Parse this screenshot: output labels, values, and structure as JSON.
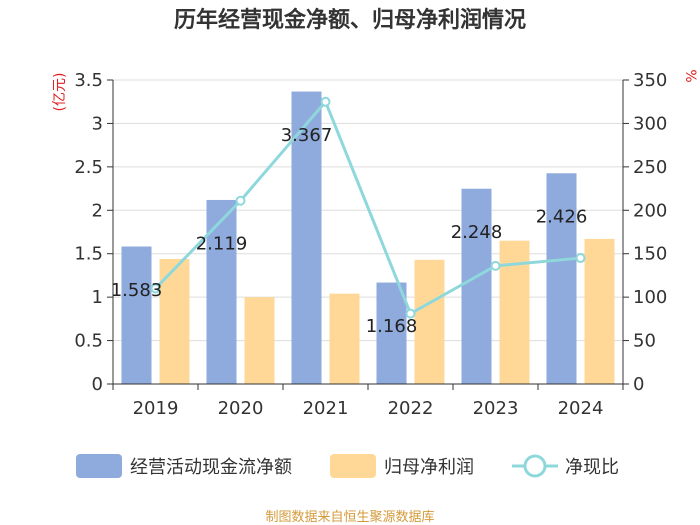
{
  "chart_data": {
    "type": "bar",
    "title": "历年经营现金净额、归母净利润情况",
    "categories": [
      "2019",
      "2020",
      "2021",
      "2022",
      "2023",
      "2024"
    ],
    "left_axis": {
      "unit": "(亿元)",
      "ylim": [
        0,
        3.5
      ],
      "ticks": [
        "0",
        "0.5",
        "1",
        "1.5",
        "2",
        "2.5",
        "3",
        "3.5"
      ]
    },
    "right_axis": {
      "unit": "%",
      "ylim": [
        0,
        350
      ],
      "ticks": [
        "0",
        "50",
        "100",
        "150",
        "200",
        "250",
        "300",
        "350"
      ]
    },
    "series": [
      {
        "name": "经营活动现金流净额",
        "kind": "bar",
        "axis": "left",
        "color": "#8faadc",
        "values": [
          1.583,
          2.119,
          3.367,
          1.168,
          2.248,
          2.426
        ],
        "labels": [
          "1.583",
          "2.119",
          "3.367",
          "1.168",
          "2.248",
          "2.426"
        ]
      },
      {
        "name": "归母净利润",
        "kind": "bar",
        "axis": "left",
        "color": "#ffd898",
        "values": [
          1.44,
          1.0,
          1.04,
          1.43,
          1.65,
          1.67
        ]
      },
      {
        "name": "净现比",
        "kind": "line",
        "axis": "right",
        "color": "#8ed8dc",
        "values": [
          110,
          211,
          325,
          81,
          136,
          145
        ]
      }
    ],
    "source": "制图数据来自恒生聚源数据库"
  }
}
